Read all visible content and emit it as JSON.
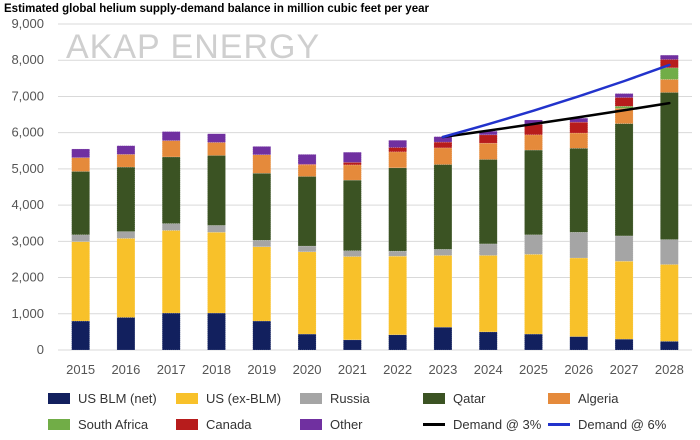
{
  "title": "Estimated global helium supply-demand balance in million cubic feet per year",
  "watermark": "AKAP ENERGY",
  "chart_data": {
    "type": "bar",
    "stacked": true,
    "title": "Estimated global helium supply-demand balance in million cubic feet per year",
    "xlabel": "",
    "ylabel": "",
    "ylim": [
      0,
      9000
    ],
    "yticks": [
      0,
      1000,
      2000,
      3000,
      4000,
      5000,
      6000,
      7000,
      8000,
      9000
    ],
    "ytick_labels": [
      "0",
      "1,000",
      "2,000",
      "3,000",
      "4,000",
      "5,000",
      "6,000",
      "7,000",
      "8,000",
      "9,000"
    ],
    "grid": true,
    "legend_position": "bottom",
    "categories": [
      "2015",
      "2016",
      "2017",
      "2018",
      "2019",
      "2020",
      "2021",
      "2022",
      "2023",
      "2024",
      "2025",
      "2026",
      "2027",
      "2028"
    ],
    "series": [
      {
        "name": "US BLM (net)",
        "color": "#12205e",
        "values": [
          800,
          900,
          1020,
          1020,
          800,
          440,
          280,
          420,
          630,
          500,
          440,
          370,
          300,
          240
        ]
      },
      {
        "name": "US (ex-BLM)",
        "color": "#f8c12a",
        "values": [
          2190,
          2180,
          2280,
          2230,
          2050,
          2270,
          2300,
          2170,
          1980,
          2110,
          2200,
          2170,
          2150,
          2120
        ]
      },
      {
        "name": "Russia",
        "color": "#a5a5a5",
        "values": [
          190,
          190,
          190,
          190,
          180,
          160,
          160,
          140,
          170,
          320,
          540,
          710,
          700,
          690
        ]
      },
      {
        "name": "Qatar",
        "color": "#3b5323",
        "values": [
          1750,
          1780,
          1840,
          1930,
          1850,
          1920,
          1950,
          2300,
          2340,
          2330,
          2340,
          2320,
          3100,
          4060
        ]
      },
      {
        "name": "Algeria",
        "color": "#e58a3b",
        "values": [
          380,
          350,
          450,
          360,
          510,
          320,
          420,
          440,
          460,
          450,
          420,
          420,
          420,
          360
        ]
      },
      {
        "name": "South Africa",
        "color": "#71ad47",
        "values": [
          0,
          0,
          0,
          0,
          0,
          0,
          0,
          0,
          0,
          0,
          0,
          0,
          60,
          320
        ]
      },
      {
        "name": "Canada",
        "color": "#b71c1c",
        "values": [
          0,
          0,
          0,
          0,
          0,
          20,
          70,
          120,
          160,
          230,
          290,
          300,
          240,
          230
        ]
      },
      {
        "name": "Other",
        "color": "#7030a0",
        "values": [
          240,
          240,
          250,
          240,
          230,
          270,
          280,
          200,
          150,
          100,
          120,
          110,
          110,
          120
        ]
      }
    ],
    "lines": [
      {
        "name": "Demand @ 3%",
        "color": "#000000",
        "x": [
          "2023",
          "2024",
          "2025",
          "2026",
          "2027",
          "2028"
        ],
        "values": [
          5880,
          6056,
          6238,
          6425,
          6618,
          6816
        ]
      },
      {
        "name": "Demand @ 6%",
        "color": "#2233cc",
        "x": [
          "2023",
          "2024",
          "2025",
          "2026",
          "2027",
          "2028"
        ],
        "values": [
          5880,
          6233,
          6607,
          7003,
          7423,
          7869
        ]
      }
    ]
  }
}
